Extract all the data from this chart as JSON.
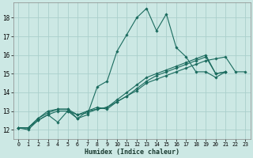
{
  "xlabel": "Humidex (Indice chaleur)",
  "ylabel": "",
  "xlim": [
    -0.5,
    23.5
  ],
  "ylim": [
    11.5,
    18.8
  ],
  "yticks": [
    12,
    13,
    14,
    15,
    16,
    17,
    18
  ],
  "xticks": [
    0,
    1,
    2,
    3,
    4,
    5,
    6,
    7,
    8,
    9,
    10,
    11,
    12,
    13,
    14,
    15,
    16,
    17,
    18,
    19,
    20,
    21,
    22,
    23
  ],
  "bg_color": "#cce8e4",
  "grid_color": "#aacfcc",
  "line_color": "#1a6b5e",
  "lines": [
    [
      12.1,
      12.0,
      12.5,
      12.8,
      12.4,
      13.0,
      12.6,
      12.8,
      14.3,
      14.6,
      16.2,
      17.1,
      18.0,
      18.5,
      17.3,
      18.2,
      16.4,
      15.9,
      15.1,
      15.1,
      14.8,
      15.1,
      null,
      null
    ],
    [
      12.1,
      12.1,
      12.6,
      13.0,
      13.1,
      13.1,
      12.6,
      13.0,
      13.2,
      13.1,
      13.5,
      13.8,
      14.1,
      14.5,
      14.7,
      14.9,
      15.1,
      15.3,
      15.5,
      15.7,
      15.8,
      15.9,
      15.1,
      15.1
    ],
    [
      12.1,
      12.1,
      12.5,
      12.8,
      13.0,
      13.0,
      12.8,
      13.0,
      13.1,
      13.2,
      13.5,
      13.8,
      14.2,
      14.6,
      14.9,
      15.1,
      15.3,
      15.5,
      15.7,
      15.9,
      15.0,
      15.1,
      null,
      null
    ],
    [
      12.1,
      12.1,
      12.6,
      12.9,
      13.1,
      13.1,
      12.8,
      12.9,
      13.1,
      13.2,
      13.6,
      14.0,
      14.4,
      14.8,
      15.0,
      15.2,
      15.4,
      15.6,
      15.8,
      16.0,
      15.0,
      15.1,
      null,
      null
    ]
  ]
}
